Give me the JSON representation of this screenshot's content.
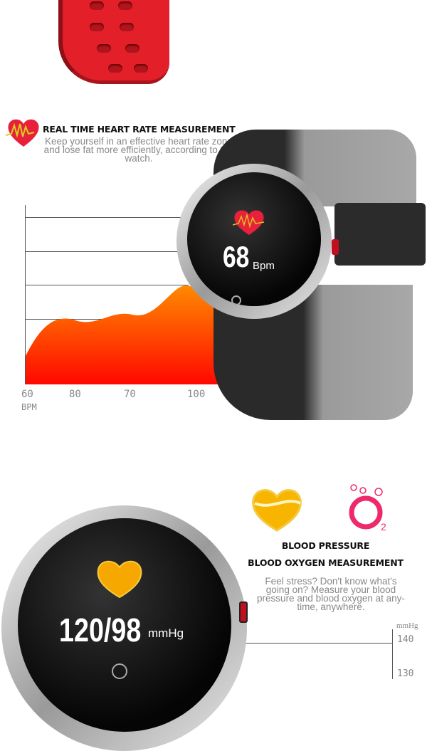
{
  "section1": {
    "title": "REAL TIME HEART RATE MEASUREMENT",
    "description_lines": [
      "Keep yourself in an effective heart rate zone",
      "and lose fat more efficiently, according to the",
      "watch."
    ],
    "chart_ticks": [
      "60",
      "80",
      "70",
      "100"
    ],
    "chart_unit": "BPM",
    "watch_value": "68",
    "watch_unit": "Bpm"
  },
  "section2": {
    "title1": "BLOOD PRESSURE",
    "title2": "BLOOD OXYGEN MEASUREMENT",
    "description_lines": [
      "Feel stress? Don't know what's",
      "going on? Measure your blood",
      "pressure and blood oxygen at any-",
      "time, anywhere."
    ],
    "oxygen_icon_label": "O",
    "oxygen_icon_sub": "2",
    "watch_value": "120/98",
    "watch_unit": "mmHg",
    "axis_unit": "mmHg",
    "axis_ticks": [
      "140",
      "130"
    ]
  },
  "colors": {
    "strap_red": "#e3202a",
    "heart_red": "#e8203a",
    "area_orange": "#ff7a00",
    "area_red": "#ff0a00",
    "yellow": "#f7b500",
    "o2_pink": "#ee2a6a"
  }
}
